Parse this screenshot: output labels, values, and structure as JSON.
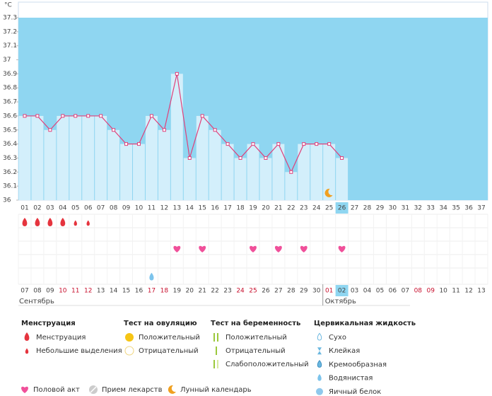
{
  "chart_data": {
    "type": "bbt",
    "y_label": "°C",
    "ylim": [
      36,
      37.3
    ],
    "yticks": [
      36,
      36.1,
      36.2,
      36.3,
      36.4,
      36.5,
      36.6,
      36.7,
      36.8,
      36.9,
      37,
      37.1,
      37.2,
      37.3
    ],
    "categories": [
      "01",
      "02",
      "03",
      "04",
      "05",
      "06",
      "07",
      "08",
      "09",
      "10",
      "11",
      "12",
      "13",
      "14",
      "15",
      "16",
      "17",
      "18",
      "19",
      "20",
      "21",
      "22",
      "23",
      "24",
      "25",
      "26",
      "27",
      "28",
      "29",
      "30",
      "31",
      "32",
      "33",
      "34",
      "35",
      "36",
      "37"
    ],
    "values": [
      36.6,
      36.6,
      36.5,
      36.6,
      36.6,
      36.6,
      36.6,
      36.5,
      36.4,
      36.4,
      36.6,
      36.5,
      36.9,
      36.3,
      36.6,
      36.5,
      36.4,
      36.3,
      36.4,
      36.3,
      36.4,
      36.2,
      36.4,
      36.4,
      36.4,
      36.3,
      null,
      null,
      null,
      null,
      null,
      null,
      null,
      null,
      null,
      null,
      null
    ],
    "line_color": "#e0407a",
    "bar_color": "#d3effb",
    "background_color": "#8fd6f1",
    "today": "26",
    "moon_day": "25",
    "menstruation": [
      "01",
      "02",
      "03",
      "04"
    ],
    "spotting": [
      "05",
      "06"
    ],
    "intercourse": [
      "13",
      "15",
      "19",
      "21",
      "23",
      "26"
    ],
    "cervical_watery": [
      "11"
    ],
    "dates": [
      "07",
      "08",
      "09",
      "10",
      "11",
      "12",
      "13",
      "14",
      "15",
      "16",
      "17",
      "18",
      "19",
      "20",
      "21",
      "22",
      "23",
      "24",
      "25",
      "26",
      "27",
      "28",
      "29",
      "30",
      "01",
      "02",
      "03",
      "04",
      "05",
      "06",
      "07",
      "08",
      "09",
      "10",
      "11",
      "12",
      "13"
    ],
    "date_colors": [
      "#444",
      "#444",
      "#444",
      "#c8102e",
      "#c8102e",
      "#c8102e",
      "#444",
      "#444",
      "#444",
      "#444",
      "#c8102e",
      "#c8102e",
      "#444",
      "#444",
      "#444",
      "#444",
      "#444",
      "#c8102e",
      "#c8102e",
      "#444",
      "#444",
      "#444",
      "#444",
      "#444",
      "#c8102e",
      "#444",
      "#444",
      "#444",
      "#444",
      "#444",
      "#444",
      "#c8102e",
      "#c8102e",
      "#444",
      "#444",
      "#444",
      "#444"
    ],
    "months": [
      "Сентябрь",
      "Октябрь"
    ],
    "legend": [
      {
        "title": "Менструация",
        "items": [
          "Менструация",
          "Небольшие выделения"
        ]
      },
      {
        "title": "Тест на овуляцию",
        "items": [
          "Положительный",
          "Отрицательный"
        ]
      },
      {
        "title": "Тест на беременность",
        "items": [
          "Положительный",
          "Отрицательный",
          "Слабоположительный"
        ]
      },
      {
        "title": "Цервикальная жидкость",
        "items": [
          "Сухо",
          "Клейкая",
          "Кремообразная",
          "Водянистая",
          "Яичный белок"
        ]
      }
    ],
    "legend_bottom": [
      "Половой акт",
      "Прием лекарств",
      "Лунный календарь"
    ]
  }
}
